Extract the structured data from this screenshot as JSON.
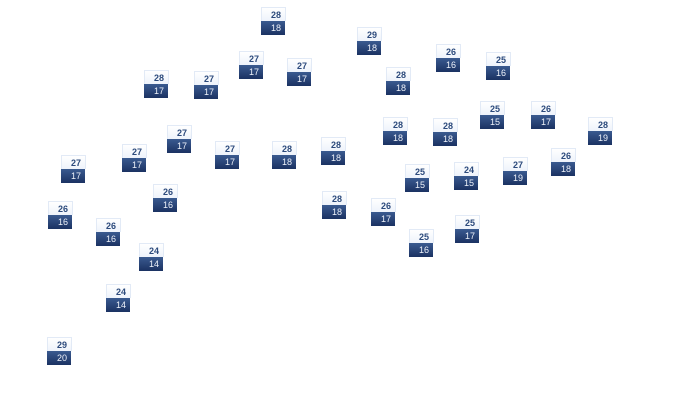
{
  "stations": [
    {
      "high": "28",
      "low": "18"
    },
    {
      "high": "29",
      "low": "18"
    },
    {
      "high": "26",
      "low": "16"
    },
    {
      "high": "25",
      "low": "16"
    },
    {
      "high": "27",
      "low": "17"
    },
    {
      "high": "27",
      "low": "17"
    },
    {
      "high": "28",
      "low": "17"
    },
    {
      "high": "27",
      "low": "17"
    },
    {
      "high": "28",
      "low": "18"
    },
    {
      "high": "25",
      "low": "15"
    },
    {
      "high": "26",
      "low": "17"
    },
    {
      "high": "28",
      "low": "18"
    },
    {
      "high": "28",
      "low": "18"
    },
    {
      "high": "28",
      "low": "19"
    },
    {
      "high": "27",
      "low": "17"
    },
    {
      "high": "27",
      "low": "17"
    },
    {
      "high": "27",
      "low": "17"
    },
    {
      "high": "28",
      "low": "18"
    },
    {
      "high": "28",
      "low": "18"
    },
    {
      "high": "27",
      "low": "17"
    },
    {
      "high": "26",
      "low": "18"
    },
    {
      "high": "27",
      "low": "19"
    },
    {
      "high": "25",
      "low": "15"
    },
    {
      "high": "24",
      "low": "15"
    },
    {
      "high": "26",
      "low": "16"
    },
    {
      "high": "28",
      "low": "18"
    },
    {
      "high": "26",
      "low": "17"
    },
    {
      "high": "26",
      "low": "16"
    },
    {
      "high": "26",
      "low": "16"
    },
    {
      "high": "25",
      "low": "17"
    },
    {
      "high": "25",
      "low": "16"
    },
    {
      "high": "24",
      "low": "14"
    },
    {
      "high": "24",
      "low": "14"
    },
    {
      "high": "29",
      "low": "20"
    }
  ]
}
